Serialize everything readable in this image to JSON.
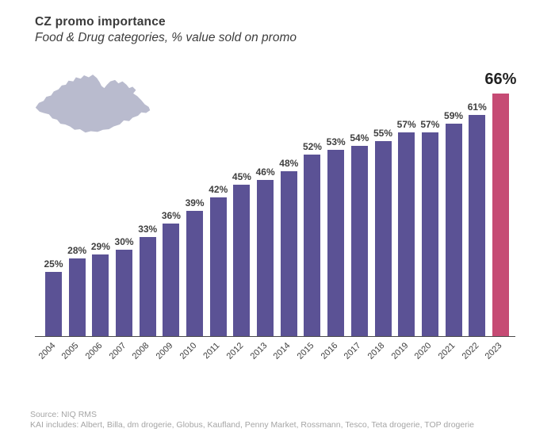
{
  "header": {
    "title": "CZ promo importance",
    "subtitle": "Food & Drug categories, % value sold on promo"
  },
  "chart_data": {
    "type": "bar",
    "title": "CZ promo importance",
    "subtitle": "Food & Drug categories, % value sold on promo",
    "categories": [
      "2004",
      "2005",
      "2006",
      "2007",
      "2008",
      "2009",
      "2010",
      "2011",
      "2012",
      "2013",
      "2014",
      "2015",
      "2016",
      "2017",
      "2018",
      "2019",
      "2020",
      "2021",
      "2022",
      "2023"
    ],
    "values": [
      25,
      28,
      29,
      30,
      33,
      36,
      39,
      42,
      45,
      46,
      48,
      52,
      53,
      54,
      55,
      57,
      57,
      59,
      61,
      66
    ],
    "value_label_suffix": "%",
    "highlight_index": 19,
    "highlight_label": "66%",
    "xlabel": "",
    "ylabel": "",
    "ylim": [
      10,
      70
    ],
    "grid": false,
    "legend": false,
    "colors": {
      "bar": "#5b5295",
      "highlight_bar": "#c64b74",
      "axis": "#4a4a4a",
      "value_label": "#3f3f3f",
      "highlight_value_label": "#222222",
      "map": "#b9bbce"
    }
  },
  "map": {
    "country": "Czech Republic",
    "color": "#b9bbce"
  },
  "footer": {
    "source": "Source: NIQ RMS",
    "coverage": "KAI includes: Albert, Billa, dm drogerie, Globus, Kaufland, Penny Market, Rossmann, Tesco, Teta drogerie, TOP drogerie"
  }
}
